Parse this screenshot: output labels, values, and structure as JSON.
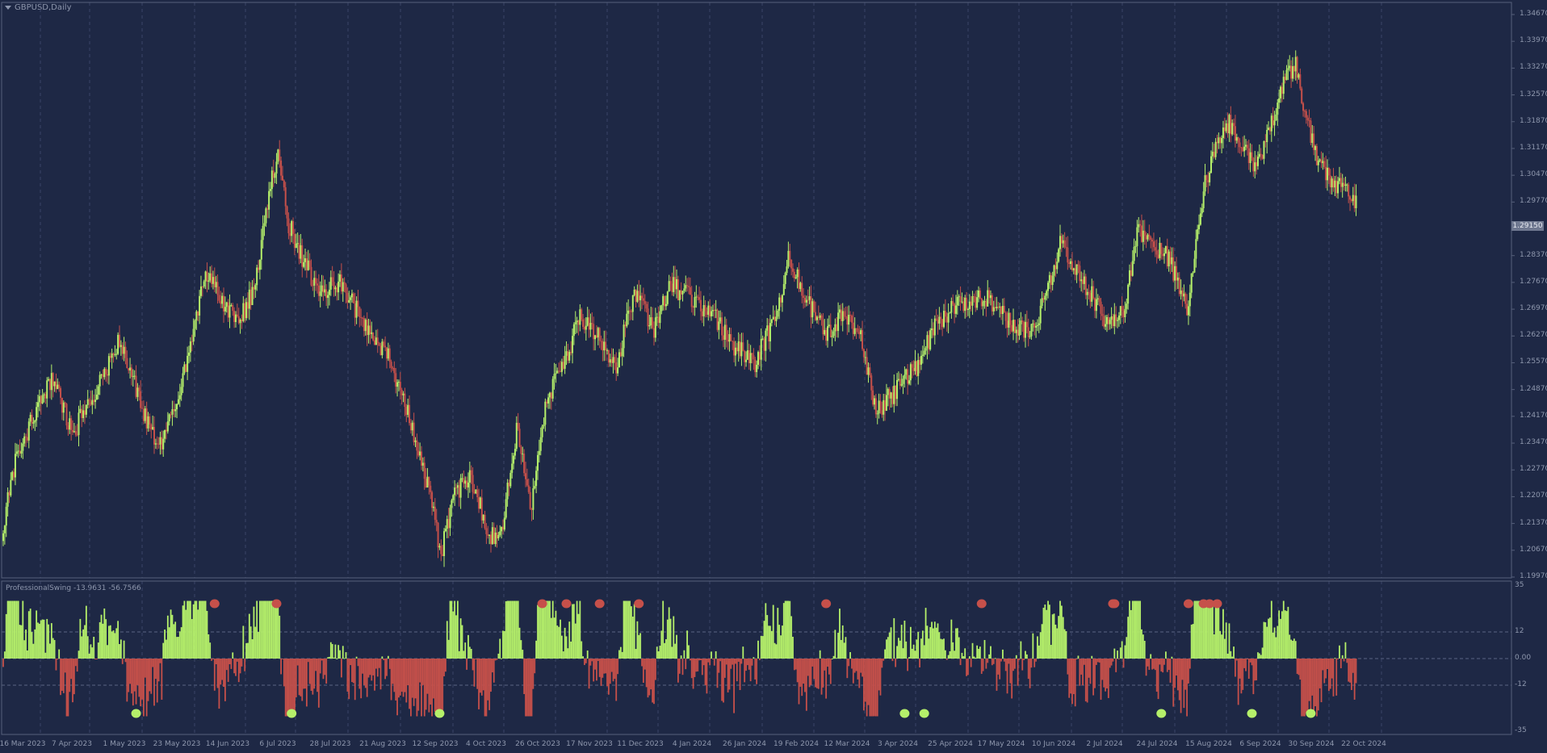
{
  "window": {
    "title": "GBPUSD,Daily"
  },
  "indicator": {
    "name": "ProfessionalSwing",
    "value1": "-13.9631",
    "value2": "-56.7566"
  },
  "price_axis": {
    "ticks": [
      "1.34670",
      "1.33970",
      "1.33270",
      "1.32570",
      "1.31870",
      "1.31170",
      "1.30470",
      "1.29770",
      "1.28370",
      "1.27670",
      "1.26970",
      "1.26270",
      "1.25570",
      "1.24870",
      "1.24170",
      "1.23470",
      "1.22770",
      "1.22070",
      "1.21370",
      "1.20670",
      "1.19970"
    ],
    "current_price": "1.29150"
  },
  "indicator_axis": {
    "ticks": [
      "35",
      "12",
      "0.00",
      "-12",
      "-35"
    ]
  },
  "time_axis": {
    "ticks": [
      "16 Mar 2023",
      "7 Apr 2023",
      "1 May 2023",
      "23 May 2023",
      "14 Jun 2023",
      "6 Jul 2023",
      "28 Jul 2023",
      "21 Aug 2023",
      "12 Sep 2023",
      "4 Oct 2023",
      "26 Oct 2023",
      "17 Nov 2023",
      "11 Dec 2023",
      "4 Jan 2024",
      "26 Jan 2024",
      "19 Feb 2024",
      "12 Mar 2024",
      "3 Apr 2024",
      "25 Apr 2024",
      "17 May 2024",
      "10 Jun 2024",
      "2 Jul 2024",
      "24 Jul 2024",
      "15 Aug 2024",
      "6 Sep 2024",
      "30 Sep 2024",
      "22 Oct 2024"
    ]
  },
  "colors": {
    "background": "#1e2845",
    "bull": "#b5f06a",
    "bear": "#c6504a",
    "grid": "#3a4566",
    "text": "#8e97ad"
  },
  "chart_data": {
    "type": "candlestick",
    "symbol": "GBPUSD",
    "timeframe": "Daily",
    "ylim": [
      1.1997,
      1.3467
    ],
    "price_path": [
      [
        0,
        1.213
      ],
      [
        8,
        1.23
      ],
      [
        20,
        1.242
      ],
      [
        32,
        1.252
      ],
      [
        46,
        1.237
      ],
      [
        60,
        1.248
      ],
      [
        78,
        1.262
      ],
      [
        93,
        1.243
      ],
      [
        103,
        1.233
      ],
      [
        113,
        1.243
      ],
      [
        123,
        1.258
      ],
      [
        134,
        1.28
      ],
      [
        146,
        1.271
      ],
      [
        156,
        1.266
      ],
      [
        166,
        1.275
      ],
      [
        176,
        1.3
      ],
      [
        182,
        1.31
      ],
      [
        189,
        1.292
      ],
      [
        198,
        1.283
      ],
      [
        210,
        1.274
      ],
      [
        222,
        1.277
      ],
      [
        236,
        1.268
      ],
      [
        254,
        1.258
      ],
      [
        270,
        1.24
      ],
      [
        282,
        1.222
      ],
      [
        290,
        1.206
      ],
      [
        300,
        1.222
      ],
      [
        310,
        1.226
      ],
      [
        322,
        1.21
      ],
      [
        330,
        1.212
      ],
      [
        340,
        1.238
      ],
      [
        350,
        1.218
      ],
      [
        360,
        1.246
      ],
      [
        372,
        1.256
      ],
      [
        382,
        1.268
      ],
      [
        394,
        1.263
      ],
      [
        406,
        1.255
      ],
      [
        418,
        1.275
      ],
      [
        430,
        1.264
      ],
      [
        442,
        1.276
      ],
      [
        458,
        1.272
      ],
      [
        470,
        1.268
      ],
      [
        484,
        1.26
      ],
      [
        498,
        1.256
      ],
      [
        512,
        1.268
      ],
      [
        520,
        1.284
      ],
      [
        530,
        1.274
      ],
      [
        544,
        1.263
      ],
      [
        556,
        1.268
      ],
      [
        568,
        1.262
      ],
      [
        578,
        1.243
      ],
      [
        590,
        1.248
      ],
      [
        604,
        1.254
      ],
      [
        618,
        1.266
      ],
      [
        632,
        1.271
      ],
      [
        646,
        1.273
      ],
      [
        658,
        1.271
      ],
      [
        668,
        1.266
      ],
      [
        680,
        1.263
      ],
      [
        690,
        1.272
      ],
      [
        700,
        1.287
      ],
      [
        710,
        1.28
      ],
      [
        720,
        1.274
      ],
      [
        732,
        1.265
      ],
      [
        742,
        1.269
      ],
      [
        752,
        1.291
      ],
      [
        762,
        1.286
      ],
      [
        772,
        1.283
      ],
      [
        784,
        1.27
      ],
      [
        796,
        1.303
      ],
      [
        806,
        1.314
      ],
      [
        812,
        1.318
      ],
      [
        820,
        1.313
      ],
      [
        830,
        1.306
      ],
      [
        840,
        1.318
      ],
      [
        848,
        1.33
      ],
      [
        856,
        1.334
      ],
      [
        862,
        1.32
      ],
      [
        870,
        1.31
      ],
      [
        880,
        1.303
      ],
      [
        890,
        1.3
      ],
      [
        896,
        1.297
      ]
    ],
    "swing_highs": [
      140,
      181,
      357,
      373,
      395,
      421,
      545,
      648,
      735,
      736,
      785,
      795,
      799,
      804
    ],
    "swing_lows": [
      88,
      191,
      289,
      597,
      610,
      767,
      827,
      866
    ]
  }
}
